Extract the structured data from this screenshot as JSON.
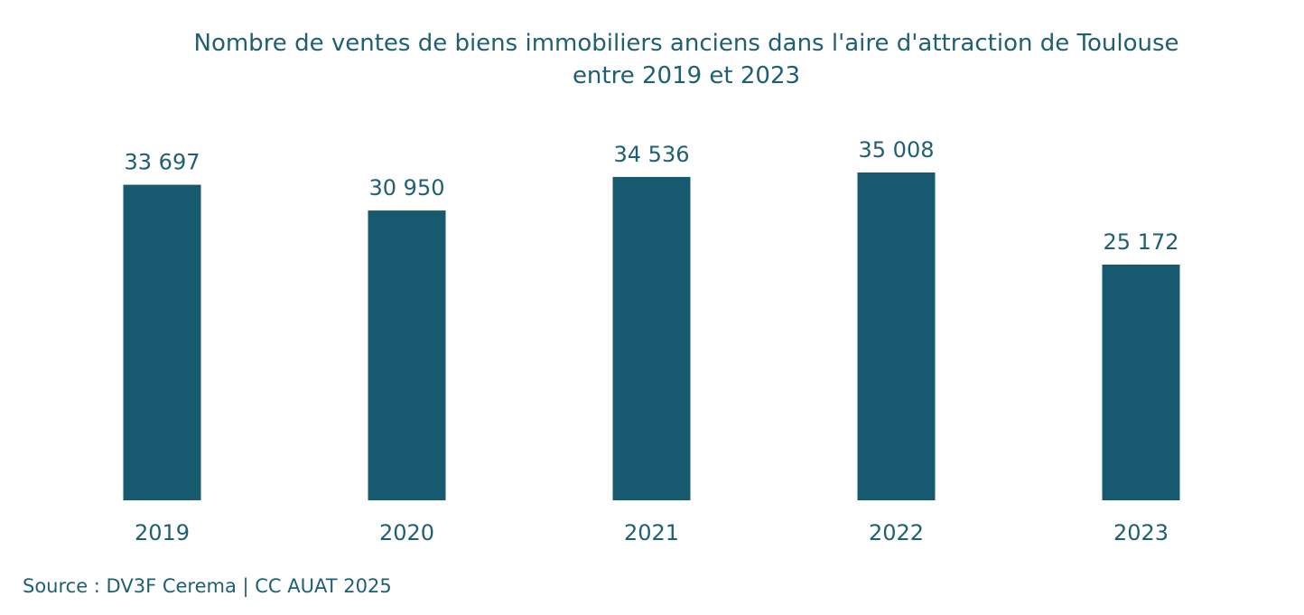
{
  "chart_data": {
    "type": "bar",
    "title_lines": [
      "Nombre de ventes de biens immobiliers anciens dans l'aire d'attraction de Toulouse",
      "entre 2019 et 2023"
    ],
    "categories": [
      "2019",
      "2020",
      "2021",
      "2022",
      "2023"
    ],
    "values": [
      33697,
      30950,
      34536,
      35008,
      25172
    ],
    "value_labels": [
      "33 697",
      "30 950",
      "34 536",
      "35 008",
      "25 172"
    ],
    "xlabel": "",
    "ylabel": "",
    "ylim": [
      0,
      35008
    ],
    "grid": false,
    "legend": "none",
    "bar_color": "#175a70"
  },
  "source": "Source : DV3F Cerema | CC AUAT 2025"
}
